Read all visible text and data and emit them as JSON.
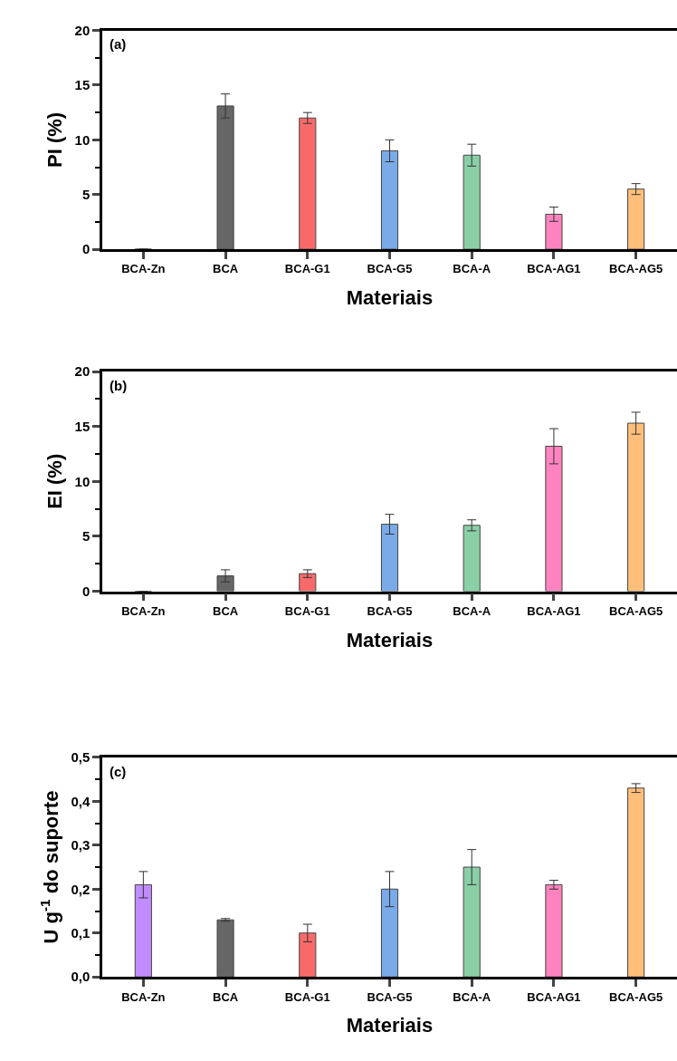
{
  "chart_data": [
    {
      "type": "bar",
      "ylabel": "PI (%)",
      "xlabel": "Materiais",
      "annotations": [
        "(a)"
      ],
      "categories": [
        "BCA-Zn",
        "BCA",
        "BCA-G1",
        "BCA-G5",
        "BCA-A",
        "BCA-AG1",
        "BCA-AG5"
      ],
      "values": [
        0,
        13.1,
        12.0,
        9.0,
        8.6,
        3.2,
        5.5
      ],
      "errors": [
        null,
        1.1,
        0.5,
        1.0,
        1.0,
        0.65,
        0.5
      ],
      "colors": [
        "#444444",
        "#666666",
        "#f86a6a",
        "#7aaae8",
        "#8acfa6",
        "#fc83c0",
        "#ffbf7a"
      ],
      "ylim": [
        0,
        20
      ],
      "yticks": [
        0,
        5,
        10,
        15,
        20
      ]
    },
    {
      "type": "bar",
      "ylabel": "EI (%)",
      "xlabel": "Materiais",
      "annotations": [
        "(b)"
      ],
      "categories": [
        "BCA-Zn",
        "BCA",
        "BCA-G1",
        "BCA-G5",
        "BCA-A",
        "BCA-AG1",
        "BCA-AG5"
      ],
      "values": [
        0,
        1.4,
        1.6,
        6.1,
        6.0,
        13.2,
        15.3
      ],
      "errors": [
        null,
        0.55,
        0.35,
        0.9,
        0.5,
        1.6,
        1.0
      ],
      "colors": [
        "#444444",
        "#666666",
        "#f86a6a",
        "#7aaae8",
        "#8acfa6",
        "#fc83c0",
        "#ffbf7a"
      ],
      "ylim": [
        0,
        20
      ],
      "yticks": [
        0,
        5,
        10,
        15,
        20
      ]
    },
    {
      "type": "bar",
      "ylabel": "U g$^{-1}$ do suporte",
      "xlabel": "Materiais",
      "annotations": [
        "(c)"
      ],
      "categories": [
        "BCA-Zn",
        "BCA",
        "BCA-G1",
        "BCA-G5",
        "BCA-A",
        "BCA-AG1",
        "BCA-AG5"
      ],
      "values": [
        0.21,
        0.13,
        0.1,
        0.2,
        0.25,
        0.21,
        0.43
      ],
      "errors": [
        0.03,
        0.003,
        0.02,
        0.04,
        0.04,
        0.01,
        0.01
      ],
      "colors": [
        "#c08cff",
        "#666666",
        "#f86a6a",
        "#7aaae8",
        "#8acfa6",
        "#fc83c0",
        "#ffbf7a"
      ],
      "ylim": [
        0,
        0.5
      ],
      "yticks": [
        {
          "value": 0,
          "label": "0,0"
        },
        {
          "value": 0.1,
          "label": "0,1"
        },
        {
          "value": 0.2,
          "label": "0,2"
        },
        {
          "value": 0.3,
          "label": "0,3"
        },
        {
          "value": 0.4,
          "label": "0,4"
        },
        {
          "value": 0.5,
          "label": "0,5"
        }
      ]
    }
  ]
}
